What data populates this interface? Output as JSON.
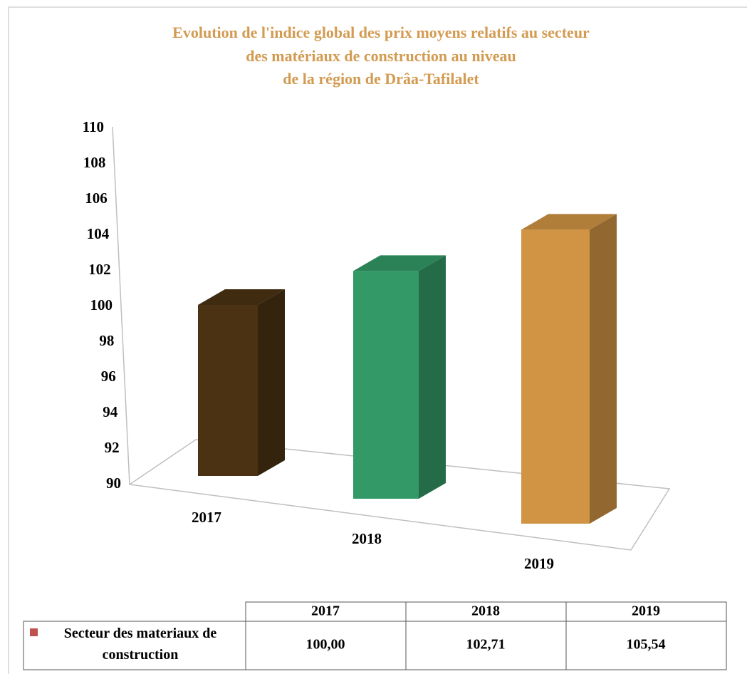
{
  "chart_data": {
    "type": "bar3d",
    "title": [
      "Evolution de l'indice global des prix moyens relatifs  au secteur",
      "des matériaux de construction au  niveau",
      "de la région de Drâa-Tafilalet"
    ],
    "categories": [
      "2017",
      "2018",
      "2019"
    ],
    "series": [
      {
        "name": "Secteur des materiaux de construction",
        "color": "#c0504d",
        "bar_colors": [
          "#4a3212",
          "#339966",
          "#d09444"
        ],
        "values": [
          100,
          102.71,
          105.54
        ],
        "value_labels": [
          "100,00",
          "102,71",
          "105,54"
        ]
      }
    ],
    "ylim": [
      90,
      110
    ],
    "yticks": [
      90,
      92,
      94,
      96,
      98,
      100,
      102,
      104,
      106,
      108,
      110
    ],
    "grid": false,
    "data_table": true
  }
}
